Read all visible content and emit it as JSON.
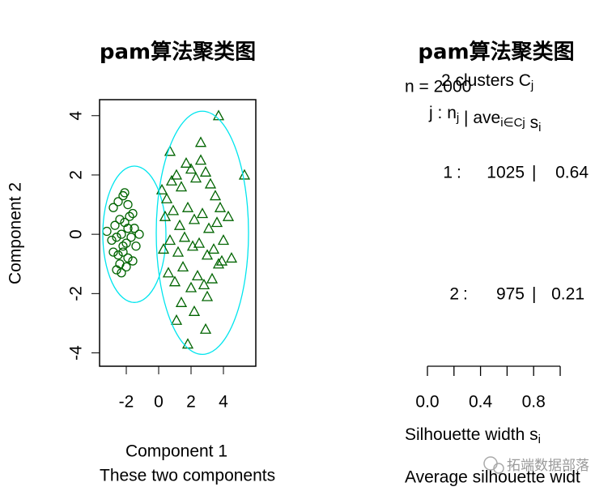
{
  "chart_data": [
    {
      "type": "scatter",
      "title": "pam算法聚类图",
      "x_label": "Component 1",
      "y_label": "Component 2",
      "subtitle": "These two components",
      "xlim": [
        -3.65,
        6.0
      ],
      "ylim": [
        -4.45,
        4.54
      ],
      "xticks": [
        -2,
        0,
        2,
        4
      ],
      "yticks": [
        -4,
        -2,
        0,
        2,
        4
      ],
      "ellipse_color": "#00e5ee",
      "series": [
        {
          "color": "#006400",
          "shape": "circle",
          "ellipse": {
            "center": [
              -1.5,
              0
            ],
            "radii": [
              1.95,
              2.3
            ]
          },
          "x": [
            -2.8,
            -2.5,
            -2.2,
            -1.9,
            -1.6,
            -2.7,
            -2.4,
            -2.1,
            -1.8,
            -1.5,
            -2.9,
            -2.6,
            -2.3,
            -2.0,
            -1.7,
            -1.4,
            -2.5,
            -2.2,
            -1.9,
            -2.8,
            -2.4,
            -2.0,
            -1.6,
            -2.3,
            -2.1,
            -3.2,
            -1.2,
            -2.6,
            -1.9,
            -2.2
          ],
          "y": [
            0.9,
            1.1,
            1.3,
            1.0,
            0.7,
            0.3,
            0.5,
            0.4,
            0.6,
            0.2,
            -0.2,
            -0.1,
            0.0,
            -0.3,
            -0.1,
            -0.4,
            -0.7,
            -0.6,
            -0.8,
            -0.6,
            -1.0,
            -1.1,
            -0.9,
            -1.3,
            1.4,
            0.1,
            0.0,
            -1.2,
            0.2,
            -0.4
          ]
        },
        {
          "color": "#006400",
          "shape": "triangle",
          "ellipse": {
            "center": [
              2.7,
              0.05
            ],
            "radii": [
              2.85,
              4.1
            ]
          },
          "x": [
            0.2,
            0.5,
            0.8,
            1.1,
            1.4,
            1.7,
            2.0,
            2.3,
            2.6,
            2.9,
            3.2,
            3.5,
            3.8,
            0.4,
            0.9,
            1.3,
            1.8,
            2.2,
            2.7,
            3.1,
            3.6,
            4.0,
            0.3,
            0.7,
            1.2,
            1.6,
            2.1,
            2.5,
            3.0,
            3.4,
            3.9,
            4.3,
            0.6,
            1.0,
            1.5,
            2.0,
            2.4,
            2.8,
            3.3,
            1.4,
            2.2,
            3.0,
            3.7,
            5.3,
            0.7,
            1.8,
            2.9,
            1.1,
            2.6,
            4.5,
            3.7
          ],
          "y": [
            1.5,
            1.2,
            1.8,
            2.0,
            1.6,
            2.4,
            2.2,
            1.9,
            2.5,
            2.1,
            1.7,
            1.3,
            0.9,
            0.6,
            0.8,
            0.3,
            0.9,
            0.5,
            0.7,
            0.2,
            0.4,
            -0.2,
            -0.5,
            -0.2,
            -0.6,
            -0.1,
            -0.4,
            -0.3,
            -0.7,
            -0.5,
            -0.9,
            0.6,
            -1.3,
            -1.6,
            -1.1,
            -1.8,
            -1.4,
            -1.7,
            -1.5,
            -2.3,
            -2.6,
            -2.1,
            -1.0,
            2.0,
            2.8,
            -3.7,
            -3.2,
            -2.9,
            3.1,
            -0.8,
            4.0
          ]
        }
      ]
    },
    {
      "type": "silhouette",
      "title": "pam算法聚类图",
      "n_label": "n = 2000",
      "clusters_label": {
        "text": "2 clusters  C",
        "sub": "j"
      },
      "column_header": [
        {
          "text": "j"
        },
        {
          "text": " :  "
        },
        {
          "text": "n",
          "sub": "j"
        },
        {
          "text": " | "
        },
        {
          "text": "ave",
          "sub": "i∈Cj"
        },
        {
          "text": "  s",
          "sub": "i"
        }
      ],
      "separators": [
        ":",
        "|"
      ],
      "categories": [
        "1",
        "2"
      ],
      "n": [
        1025,
        975
      ],
      "values": [
        0.64,
        0.21
      ],
      "x_label": {
        "text": "Silhouette width s",
        "sub": "i"
      },
      "subtitle": "Average silhouette widt",
      "xlim": [
        0,
        1
      ],
      "xticks": [
        {
          "value": 0,
          "label": "0.0"
        },
        {
          "value": 0.2,
          "label": null
        },
        {
          "value": 0.4,
          "label": "0.4"
        },
        {
          "value": 0.6,
          "label": null
        },
        {
          "value": 0.8,
          "label": "0.8"
        },
        {
          "value": 1,
          "label": null
        }
      ]
    }
  ],
  "watermark": "拓端数据部落"
}
